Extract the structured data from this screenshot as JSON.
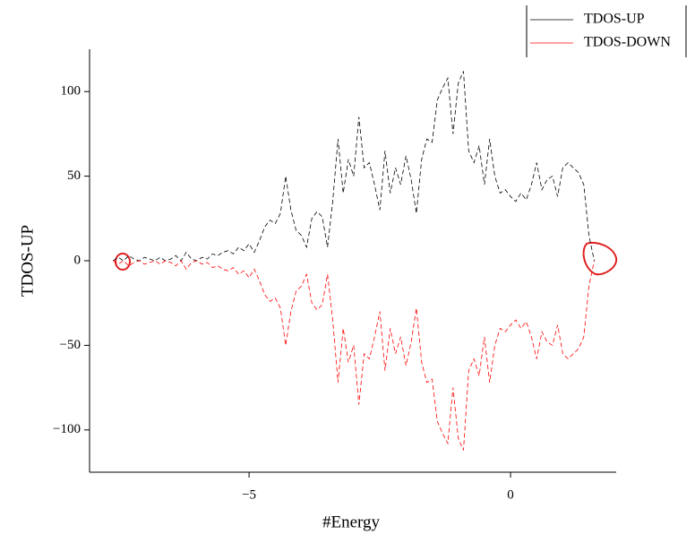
{
  "chart_data": {
    "type": "line",
    "xlabel": "#Energy",
    "ylabel": "TDOS-UP",
    "x": [
      -7.6,
      -7.5,
      -7.4,
      -7.3,
      -7.2,
      -7.1,
      -7.0,
      -6.9,
      -6.8,
      -6.7,
      -6.6,
      -6.5,
      -6.4,
      -6.3,
      -6.2,
      -6.1,
      -6.0,
      -5.9,
      -5.8,
      -5.7,
      -5.6,
      -5.5,
      -5.4,
      -5.3,
      -5.2,
      -5.1,
      -5.0,
      -4.9,
      -4.8,
      -4.7,
      -4.6,
      -4.5,
      -4.4,
      -4.3,
      -4.2,
      -4.1,
      -4.0,
      -3.9,
      -3.8,
      -3.7,
      -3.6,
      -3.5,
      -3.4,
      -3.3,
      -3.2,
      -3.1,
      -3.0,
      -2.9,
      -2.8,
      -2.7,
      -2.6,
      -2.5,
      -2.4,
      -2.3,
      -2.2,
      -2.1,
      -2.0,
      -1.9,
      -1.8,
      -1.7,
      -1.6,
      -1.5,
      -1.4,
      -1.3,
      -1.2,
      -1.1,
      -1.0,
      -0.9,
      -0.8,
      -0.7,
      -0.6,
      -0.5,
      -0.4,
      -0.3,
      -0.2,
      -0.1,
      0.0,
      0.1,
      0.2,
      0.3,
      0.4,
      0.5,
      0.6,
      0.7,
      0.8,
      0.9,
      1.0,
      1.1,
      1.2,
      1.3,
      1.4,
      1.5,
      1.6
    ],
    "series": [
      {
        "name": "TDOS-UP",
        "color": "#000000",
        "values": [
          0,
          2,
          0,
          3,
          1,
          0,
          2,
          1,
          0,
          2,
          0,
          1,
          3,
          0,
          5,
          1,
          0,
          2,
          1,
          4,
          3,
          5,
          6,
          4,
          8,
          6,
          10,
          5,
          12,
          20,
          24,
          22,
          28,
          50,
          30,
          18,
          15,
          8,
          25,
          29,
          26,
          8,
          35,
          72,
          40,
          60,
          50,
          85,
          55,
          58,
          45,
          30,
          65,
          40,
          55,
          45,
          62,
          48,
          28,
          60,
          72,
          70,
          95,
          102,
          108,
          75,
          105,
          112,
          65,
          58,
          68,
          45,
          72,
          50,
          40,
          42,
          38,
          35,
          40,
          36,
          45,
          58,
          42,
          48,
          50,
          38,
          55,
          58,
          55,
          52,
          45,
          15,
          0
        ]
      },
      {
        "name": "TDOS-DOWN",
        "color": "#ff0000",
        "values": [
          0,
          -2,
          0,
          -3,
          -1,
          0,
          -2,
          -1,
          0,
          -2,
          0,
          -1,
          -3,
          0,
          -5,
          -1,
          0,
          -2,
          -1,
          -4,
          -3,
          -5,
          -6,
          -4,
          -8,
          -6,
          -10,
          -5,
          -12,
          -20,
          -24,
          -22,
          -28,
          -50,
          -30,
          -18,
          -15,
          -8,
          -25,
          -29,
          -26,
          -8,
          -35,
          -72,
          -40,
          -60,
          -50,
          -85,
          -55,
          -58,
          -45,
          -30,
          -65,
          -40,
          -55,
          -45,
          -62,
          -48,
          -28,
          -60,
          -72,
          -70,
          -95,
          -102,
          -108,
          -75,
          -105,
          -112,
          -65,
          -58,
          -68,
          -45,
          -72,
          -50,
          -40,
          -42,
          -38,
          -35,
          -40,
          -36,
          -45,
          -58,
          -42,
          -48,
          -50,
          -38,
          -55,
          -58,
          -55,
          -52,
          -45,
          -15,
          0
        ]
      }
    ],
    "xlim": [
      -8.05,
      2.02
    ],
    "ylim": [
      -125,
      125
    ],
    "xticks": [
      {
        "value": -5,
        "label": "−5"
      },
      0
    ],
    "yticks": [
      {
        "value": -100,
        "label": "−100"
      },
      {
        "value": -50,
        "label": "−50"
      },
      0,
      50,
      100
    ],
    "legend": "top-right"
  }
}
